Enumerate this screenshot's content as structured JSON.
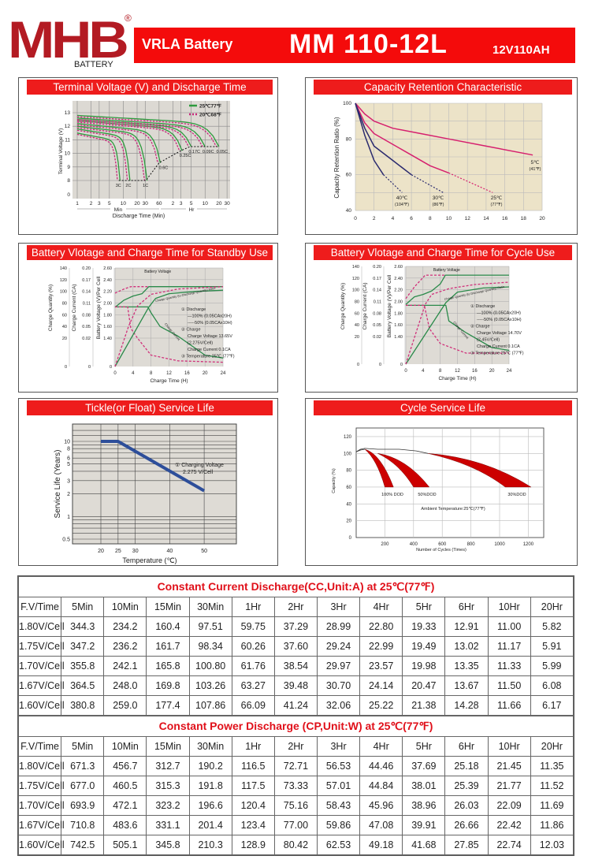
{
  "header": {
    "logo": {
      "text": "MHB",
      "registered": "®",
      "subtitle": "BATTERY"
    },
    "product_type": "VRLA Battery",
    "model": "MM  110-12L",
    "spec": "12V110AH",
    "colors": {
      "brand_red": "#b31b23",
      "banner_red": "#f40b0b"
    }
  },
  "panels": [
    {
      "title": "Terminal Voltage (V) and Discharge Time"
    },
    {
      "title": "Capacity Retention Characteristic"
    },
    {
      "title": "Battery Vlotage and Charge Time for Standby Use"
    },
    {
      "title": "Battery Vlotage and Charge Time for Cycle Use"
    },
    {
      "title": "Tickle(or Float) Service Life"
    },
    {
      "title": "Cycle Service Life"
    }
  ],
  "chart_data": [
    {
      "type": "line",
      "xlabel": "Discharge Time (Min)",
      "ylabel": "Terminal Voltage (V)",
      "x_scale": "log",
      "x_ticks": [
        "1",
        "2",
        "3",
        "5",
        "10",
        "20",
        "30",
        "60",
        "2",
        "3",
        "5",
        "10",
        "20",
        "30"
      ],
      "x_unit_labels": {
        "min": "Min",
        "hr": "Hr"
      },
      "y_ticks": [
        "0",
        "8",
        "9",
        "10",
        "11",
        "12",
        "13"
      ],
      "legend": [
        {
          "label": "25℃77℉",
          "color": "#2e9a3e",
          "style": "solid"
        },
        {
          "label": "20℃68℉",
          "color": "#c8287a",
          "style": "dashed"
        }
      ],
      "series": [
        {
          "label": "3C",
          "start_v": 11.5,
          "end_v": 8.0,
          "end_time_min": 8.5
        },
        {
          "label": "2C",
          "start_v": 11.8,
          "end_v": 8.0,
          "end_time_min": 14
        },
        {
          "label": "1C",
          "start_v": 12.0,
          "end_v": 8.0,
          "end_time_min": 33
        },
        {
          "label": "0.6C",
          "start_v": 12.2,
          "end_v": 9.3,
          "end_time_min": 64
        },
        {
          "label": "0.25C",
          "start_v": 12.4,
          "end_v": 10.2,
          "end_time_min": 190
        },
        {
          "label": "0.17C",
          "start_v": 12.5,
          "end_v": 10.5,
          "end_time_min": 300
        },
        {
          "label": "0.09C",
          "start_v": 12.6,
          "end_v": 10.5,
          "end_time_min": 600
        },
        {
          "label": "0.05C",
          "start_v": 12.8,
          "end_v": 10.5,
          "end_time_min": 1200
        }
      ]
    },
    {
      "type": "line",
      "ylabel": "Capacity Retention Ratio (%)",
      "xlim": [
        0,
        20
      ],
      "ylim": [
        40,
        100
      ],
      "x_ticks": [
        "0",
        "2",
        "4",
        "6",
        "8",
        "10",
        "12",
        "14",
        "16",
        "18",
        "20"
      ],
      "y_ticks": [
        "40",
        "60",
        "80",
        "100"
      ],
      "series": [
        {
          "label": "5℃",
          "sublabel": "(41℉)",
          "color": "#d6206e",
          "points": [
            [
              0,
              100
            ],
            [
              1,
              94
            ],
            [
              2,
              90
            ],
            [
              4,
              86
            ],
            [
              7,
              83
            ],
            [
              10,
              80
            ],
            [
              14,
              76
            ],
            [
              19,
              71
            ]
          ],
          "dashed_from": 19
        },
        {
          "label": "25℃",
          "sublabel": "(77℉)",
          "color": "#d6206e",
          "points": [
            [
              0,
              100
            ],
            [
              1,
              89
            ],
            [
              2,
              83
            ],
            [
              4,
              77
            ],
            [
              6,
              71
            ],
            [
              8,
              65
            ],
            [
              10,
              61
            ],
            [
              14.7,
              50
            ]
          ],
          "dashed_from": 10
        },
        {
          "label": "30℃",
          "sublabel": "(86℉)",
          "color": "#2a2a6e",
          "points": [
            [
              0,
              100
            ],
            [
              1,
              86
            ],
            [
              2,
              76
            ],
            [
              4,
              68
            ],
            [
              6,
              60
            ],
            [
              9.4,
              50
            ]
          ],
          "dashed_from": 6
        },
        {
          "label": "40℃",
          "sublabel": "(104℉)",
          "color": "#2a2a6e",
          "points": [
            [
              0,
              100
            ],
            [
              1,
              82
            ],
            [
              2,
              68
            ],
            [
              3,
              60
            ],
            [
              5,
              50
            ]
          ],
          "dashed_from": 3.5
        }
      ]
    },
    {
      "type": "line",
      "xlabel": "Charge Time (H)",
      "ylabels": [
        "Charge Quantity (%)",
        "Charge Current (CA)",
        "Battery Voltage (V)/Per Cell"
      ],
      "x_ticks": [
        "0",
        "4",
        "8",
        "12",
        "16",
        "20",
        "24"
      ],
      "y_ticks_quantity": [
        "140",
        "120",
        "100",
        "80",
        "60",
        "40",
        "20",
        "0"
      ],
      "y_ticks_current": [
        "0.20",
        "0.17",
        "0.14",
        "0.11",
        "0.08",
        "0.05",
        "0.02",
        "0"
      ],
      "y_ticks_voltage": [
        "2.60",
        "2.40",
        "2.20",
        "2.00",
        "1.80",
        "1.60",
        "1.40",
        "0"
      ],
      "annotations": {
        "voltage": "Battery Voltage",
        "quantity": "Charge Quantity (to-Discharge Quantity) Ratio",
        "current": "Charge Current"
      },
      "notes": [
        "① Discharge",
        "—100% (0.05CAx20H)",
        "-----50% (0.05CAx10H)",
        "② Charge",
        "Charge Voltage 13.65V",
        "(2.275V/Cell)",
        "Charge Current 0.1CA",
        "③ Temperature 25℃ (77℉)"
      ],
      "series": {
        "voltage_100": [
          [
            0,
            1.93
          ],
          [
            2,
            2.05
          ],
          [
            4,
            2.12
          ],
          [
            6,
            2.16
          ],
          [
            7.5,
            2.28
          ],
          [
            24,
            2.28
          ]
        ],
        "voltage_50": [
          [
            0,
            2.17
          ],
          [
            2,
            2.24
          ],
          [
            3.5,
            2.28
          ],
          [
            7.5,
            2.28
          ]
        ],
        "current_100": [
          [
            0,
            0.1
          ],
          [
            7.3,
            0.1
          ],
          [
            8,
            0.085
          ],
          [
            10,
            0.05
          ],
          [
            14,
            0.025
          ],
          [
            20,
            0.008
          ],
          [
            24,
            0.006
          ]
        ],
        "current_50": [
          [
            0,
            0.1
          ],
          [
            2.8,
            0.1
          ],
          [
            3.5,
            0.045
          ],
          [
            5,
            0.02
          ],
          [
            8,
            0.008
          ],
          [
            14,
            0.004
          ],
          [
            24,
            0.003
          ]
        ],
        "quantity_100": [
          [
            0,
            0
          ],
          [
            7.5,
            73
          ],
          [
            9,
            88
          ],
          [
            12,
            96
          ],
          [
            18,
            100
          ],
          [
            24,
            102
          ]
        ],
        "quantity_50": [
          [
            0,
            0
          ],
          [
            3,
            40
          ],
          [
            5,
            75
          ],
          [
            8,
            95
          ],
          [
            14,
            104
          ],
          [
            24,
            108
          ]
        ]
      }
    },
    {
      "type": "line",
      "xlabel": "Charge Time (H)",
      "ylabels": [
        "Charge Quantity (%)",
        "Charge Current (CA)",
        "Battery Voltage (V)/Per Cell"
      ],
      "x_ticks": [
        "0",
        "4",
        "8",
        "12",
        "16",
        "20",
        "24"
      ],
      "y_ticks_quantity": [
        "140",
        "120",
        "100",
        "80",
        "60",
        "40",
        "20",
        "0"
      ],
      "y_ticks_current": [
        "0.20",
        "0.17",
        "0.14",
        "0.11",
        "0.08",
        "0.05",
        "0.02",
        "0"
      ],
      "y_ticks_voltage": [
        "2.60",
        "2.40",
        "2.20",
        "2.00",
        "1.80",
        "1.60",
        "1.40",
        "0"
      ],
      "annotations": {
        "voltage": "Battery Voltage",
        "quantity": "Charge Quantity (to-Discharge Quantity) Ratio",
        "current": "Charge Current"
      },
      "notes": [
        "① Discharge",
        "—100% (0.05CAx20H)",
        "-----50% (0.05CAx10H)",
        "② Charge",
        "Charge Voltage 14.70V",
        "(2.45V/Cell)",
        "Charge Current 0.1CA",
        "③ Temperature 25℃ (77℉)"
      ],
      "series": {
        "voltage_100": [
          [
            0,
            1.95
          ],
          [
            2,
            2.08
          ],
          [
            4,
            2.12
          ],
          [
            6,
            2.18
          ],
          [
            8,
            2.3
          ],
          [
            9.2,
            2.45
          ],
          [
            24,
            2.45
          ]
        ],
        "voltage_50": [
          [
            0,
            2.05
          ],
          [
            2,
            2.25
          ],
          [
            4.5,
            2.45
          ],
          [
            9.2,
            2.45
          ]
        ],
        "current_100": [
          [
            0,
            0.1
          ],
          [
            9.3,
            0.1
          ],
          [
            10,
            0.06
          ],
          [
            14,
            0.03
          ],
          [
            20,
            0.012
          ],
          [
            24,
            0.01
          ]
        ],
        "current_50": [
          [
            0,
            0.1
          ],
          [
            4.3,
            0.1
          ],
          [
            5.5,
            0.04
          ],
          [
            8,
            0.015
          ],
          [
            14,
            0.008
          ],
          [
            24,
            0.008
          ]
        ],
        "quantity_100": [
          [
            0,
            0
          ],
          [
            9.3,
            78
          ],
          [
            12,
            96
          ],
          [
            18,
            103
          ],
          [
            24,
            105
          ]
        ],
        "quantity_50": [
          [
            0,
            0
          ],
          [
            4.5,
            75
          ],
          [
            6,
            92
          ],
          [
            10,
            102
          ],
          [
            16,
            109
          ],
          [
            24,
            113
          ]
        ]
      }
    },
    {
      "type": "line",
      "xlabel": "Temperature (℃)",
      "ylabel": "Service Life (Years)",
      "y_scale": "log",
      "x_ticks": [
        "20",
        "25",
        "30",
        "40",
        "50"
      ],
      "y_ticks": [
        "10",
        "8",
        "6",
        "5",
        "3",
        "2",
        "1",
        "0.5"
      ],
      "annotation": [
        "① Charging Voltage",
        "2.275 V/Cell"
      ],
      "series": [
        {
          "color": "#2d4e9a",
          "points": [
            [
              20,
              10
            ],
            [
              25,
              10
            ],
            [
              50,
              2.2
            ]
          ]
        }
      ]
    },
    {
      "type": "area",
      "xlabel": "Number of Cycles  (Times)",
      "ylabel": "Capacity  (%)",
      "xlim": [
        0,
        1300
      ],
      "ylim": [
        0,
        120
      ],
      "x_ticks": [
        "200",
        "400",
        "600",
        "800",
        "1000",
        "1200"
      ],
      "y_ticks": [
        "0",
        "20",
        "40",
        "60",
        "80",
        "100",
        "120"
      ],
      "annotation": "Ambient Temperature:25℃(77℉)",
      "color": "#cc0000",
      "series": [
        {
          "label": "100% DOD",
          "start": [
            60,
            105
          ],
          "end_cycles": [
            200,
            260
          ],
          "end_capacity": 60
        },
        {
          "label": "50%DOD",
          "start": [
            150,
            100
          ],
          "end_cycles": [
            400,
            510
          ],
          "end_capacity": 60
        },
        {
          "label": "30%DOD",
          "start": [
            500,
            100
          ],
          "end_cycles": [
            1040,
            1220
          ],
          "end_capacity": 60
        }
      ]
    }
  ],
  "tables": [
    {
      "title": "Constant Current Discharge(CC,Unit:A)    at 25℃(77℉)",
      "columns": [
        "F.V/Time",
        "5Min",
        "10Min",
        "15Min",
        "30Min",
        "1Hr",
        "2Hr",
        "3Hr",
        "4Hr",
        "5Hr",
        "6Hr",
        "10Hr",
        "20Hr"
      ],
      "rows": [
        [
          "1.80V/Cell",
          "344.3",
          "234.2",
          "160.4",
          "97.51",
          "59.75",
          "37.29",
          "28.99",
          "22.80",
          "19.33",
          "12.91",
          "11.00",
          "5.82"
        ],
        [
          "1.75V/Cell",
          "347.2",
          "236.2",
          "161.7",
          "98.34",
          "60.26",
          "37.60",
          "29.24",
          "22.99",
          "19.49",
          "13.02",
          "11.17",
          "5.91"
        ],
        [
          "1.70V/Cell",
          "355.8",
          "242.1",
          "165.8",
          "100.80",
          "61.76",
          "38.54",
          "29.97",
          "23.57",
          "19.98",
          "13.35",
          "11.33",
          "5.99"
        ],
        [
          "1.67V/Cell",
          "364.5",
          "248.0",
          "169.8",
          "103.26",
          "63.27",
          "39.48",
          "30.70",
          "24.14",
          "20.47",
          "13.67",
          "11.50",
          "6.08"
        ],
        [
          "1.60V/Cell",
          "380.8",
          "259.0",
          "177.4",
          "107.86",
          "66.09",
          "41.24",
          "32.06",
          "25.22",
          "21.38",
          "14.28",
          "11.66",
          "6.17"
        ]
      ]
    },
    {
      "title": "Constant Power Discharge (CP,Unit:W) at 25℃(77℉)",
      "columns": [
        "F.V/Time",
        "5Min",
        "10Min",
        "15Min",
        "30Min",
        "1Hr",
        "2Hr",
        "3Hr",
        "4Hr",
        "5Hr",
        "6Hr",
        "10Hr",
        "20Hr"
      ],
      "rows": [
        [
          "1.80V/Cell",
          "671.3",
          "456.7",
          "312.7",
          "190.2",
          "116.5",
          "72.71",
          "56.53",
          "44.46",
          "37.69",
          "25.18",
          "21.45",
          "11.35"
        ],
        [
          "1.75V/Cell",
          "677.0",
          "460.5",
          "315.3",
          "191.8",
          "117.5",
          "73.33",
          "57.01",
          "44.84",
          "38.01",
          "25.39",
          "21.77",
          "11.52"
        ],
        [
          "1.70V/Cell",
          "693.9",
          "472.1",
          "323.2",
          "196.6",
          "120.4",
          "75.16",
          "58.43",
          "45.96",
          "38.96",
          "26.03",
          "22.09",
          "11.69"
        ],
        [
          "1.67V/Cell",
          "710.8",
          "483.6",
          "331.1",
          "201.4",
          "123.4",
          "77.00",
          "59.86",
          "47.08",
          "39.91",
          "26.66",
          "22.42",
          "11.86"
        ],
        [
          "1.60V/Cell",
          "742.5",
          "505.1",
          "345.8",
          "210.3",
          "128.9",
          "80.42",
          "62.53",
          "49.18",
          "41.68",
          "27.85",
          "22.74",
          "12.03"
        ]
      ]
    }
  ]
}
